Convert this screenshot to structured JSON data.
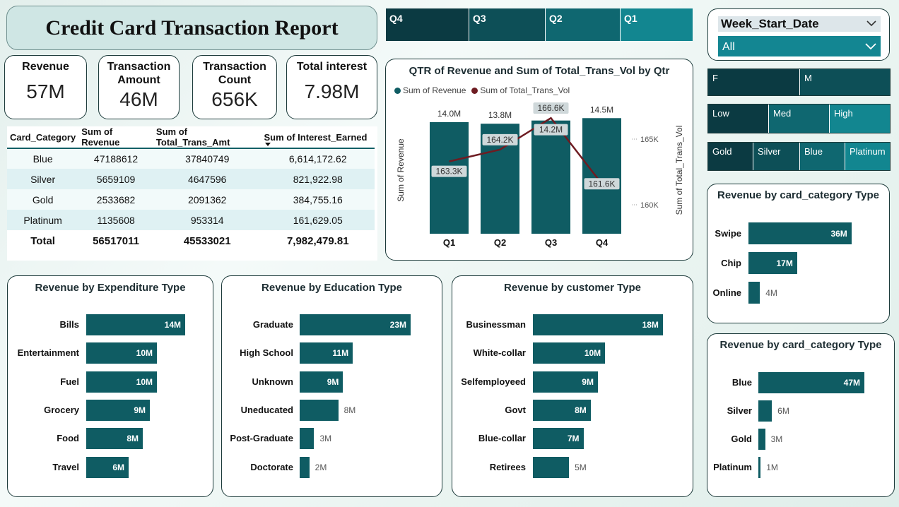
{
  "title": "Credit Card Transaction Report",
  "kpis": [
    {
      "label": "Revenue",
      "value": "57M"
    },
    {
      "label": "Transaction Amount",
      "value": "46M"
    },
    {
      "label": "Transaction Count",
      "value": "656K"
    },
    {
      "label": "Total interest",
      "value": "7.98M"
    }
  ],
  "table": {
    "headers": [
      "Card_Category",
      "Sum of Revenue",
      "Sum of Total_Trans_Amt",
      "Sum of Interest_Earned"
    ],
    "rows": [
      [
        "Blue",
        "47188612",
        "37840749",
        "6,614,172.62"
      ],
      [
        "Silver",
        "5659109",
        "4647596",
        "821,922.98"
      ],
      [
        "Gold",
        "2533682",
        "2091362",
        "384,755.16"
      ],
      [
        "Platinum",
        "1135608",
        "953314",
        "161,629.05"
      ]
    ],
    "total": [
      "Total",
      "56517011",
      "45533021",
      "7,982,479.81"
    ]
  },
  "quarter_slicer": {
    "items": [
      "Q4",
      "Q3",
      "Q2",
      "Q1"
    ],
    "colors": [
      "#0b3a42",
      "#0d4f57",
      "#0f6770",
      "#128690"
    ]
  },
  "date_slicer": {
    "label": "Week_Start_Date",
    "value": "All"
  },
  "gender_slicer": {
    "items": [
      "F",
      "M"
    ],
    "colors": [
      "#0b3a42",
      "#0d4f57"
    ]
  },
  "income_slicer": {
    "items": [
      "Low",
      "Med",
      "High"
    ],
    "colors": [
      "#0b3a42",
      "#0f6770",
      "#128690"
    ]
  },
  "category_slicer": {
    "items": [
      "Gold",
      "Silver",
      "Blue",
      "Platinum"
    ],
    "colors": [
      "#0b3a42",
      "#0d4f57",
      "#0f6770",
      "#128690"
    ]
  },
  "chart_data": [
    {
      "type": "bar",
      "title": "QTR of Revenue and Sum of Total_Trans_Vol by Qtr",
      "legend": [
        "Sum of Revenue",
        "Sum of Total_Trans_Vol"
      ],
      "legend_colors": [
        "#0f5c63",
        "#6e1c22"
      ],
      "categories": [
        "Q1",
        "Q2",
        "Q3",
        "Q4"
      ],
      "series": [
        {
          "name": "Sum of Revenue",
          "type": "bar",
          "values": [
            14.0,
            13.8,
            14.2,
            14.5
          ],
          "labels": [
            "14.0M",
            "13.8M",
            "14.2M",
            "14.5M"
          ]
        },
        {
          "name": "Sum of Total_Trans_Vol",
          "type": "line",
          "values": [
            163.3,
            164.2,
            166.6,
            161.6
          ],
          "labels": [
            "163.3K",
            "164.2K",
            "166.6K",
            "161.6K"
          ]
        }
      ],
      "ylabel": "Sum of Revenue",
      "y2label": "Sum of Total_Trans_Vol",
      "ylim": [
        0,
        15.5
      ],
      "y2lim": [
        157.8,
        167.2
      ],
      "y2ticks": [
        160,
        165
      ],
      "y2ticklabels": [
        "160K",
        "165K"
      ]
    },
    {
      "type": "bar",
      "title": "Revenue by card_category Type",
      "categories": [
        "Swipe",
        "Chip",
        "Online"
      ],
      "values": [
        36,
        17,
        4
      ],
      "labels": [
        "36M",
        "17M",
        "4M"
      ],
      "xlim": [
        0,
        40
      ]
    },
    {
      "type": "bar",
      "title": "Revenue by Expenditure Type",
      "categories": [
        "Bills",
        "Entertainment",
        "Fuel",
        "Grocery",
        "Food",
        "Travel"
      ],
      "values": [
        14,
        10,
        10,
        9,
        8,
        6
      ],
      "labels": [
        "14M",
        "10M",
        "10M",
        "9M",
        "8M",
        "6M"
      ],
      "xlim": [
        0,
        14.2
      ]
    },
    {
      "type": "bar",
      "title": "Revenue by Education Type",
      "categories": [
        "Graduate",
        "High School",
        "Unknown",
        "Uneducated",
        "Post-Graduate",
        "Doctorate"
      ],
      "values": [
        23,
        11,
        9,
        8,
        3,
        2
      ],
      "labels": [
        "23M",
        "11M",
        "9M",
        "8M",
        "3M",
        "2M"
      ],
      "xlim": [
        0,
        23
      ]
    },
    {
      "type": "bar",
      "title": "Revenue by customer Type",
      "categories": [
        "Businessman",
        "White-collar",
        "Selfemployeed",
        "Govt",
        "Blue-collar",
        "Retirees"
      ],
      "values": [
        18,
        10,
        9,
        8,
        7,
        5
      ],
      "labels": [
        "18M",
        "10M",
        "9M",
        "8M",
        "7M",
        "5M"
      ],
      "xlim": [
        0,
        18.3
      ]
    },
    {
      "type": "bar",
      "title": "Revenue by card_category Type",
      "categories": [
        "Blue",
        "Silver",
        "Gold",
        "Platinum"
      ],
      "values": [
        47,
        6,
        3,
        1
      ],
      "labels": [
        "47M",
        "6M",
        "3M",
        "1M"
      ],
      "xlim": [
        0,
        47
      ]
    }
  ]
}
